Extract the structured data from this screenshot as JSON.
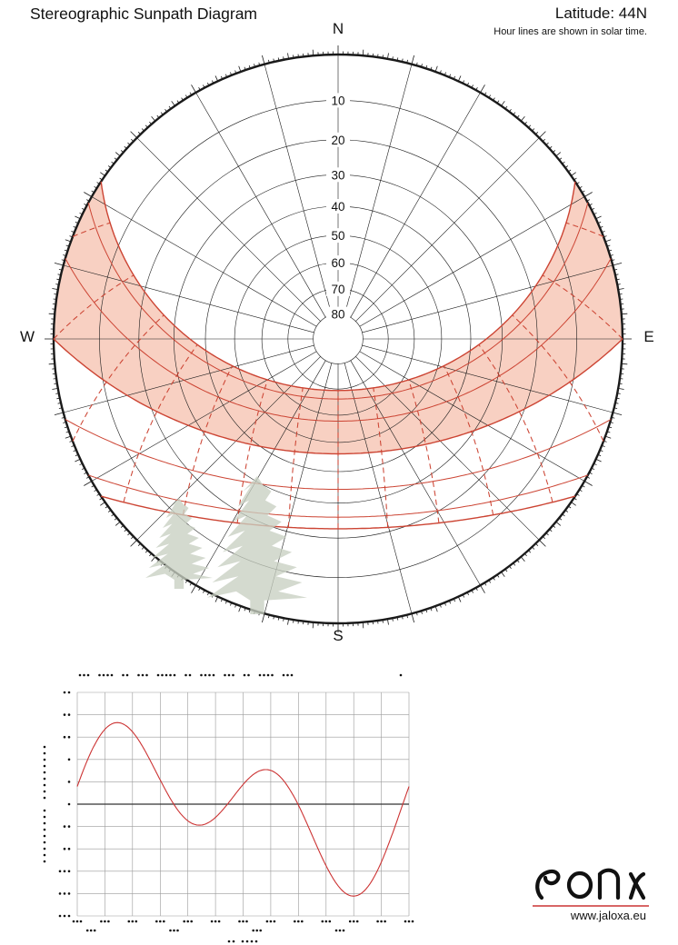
{
  "header": {
    "title": "Stereographic Sunpath Diagram",
    "latitude_label": "Latitude: 44N",
    "subtitle": "Hour lines are shown in solar time."
  },
  "diagram": {
    "compass": {
      "north": "N",
      "east": "E",
      "south": "S",
      "west": "W"
    },
    "altitude_labels": [
      "10",
      "20",
      "30",
      "40",
      "50",
      "60",
      "70",
      "80"
    ],
    "colors": {
      "grid": "#1a1a1a",
      "sun_line": "#cc4433",
      "sun_band_fill": "#ee8f6d",
      "tree": "#c8d0c2",
      "eot_grid": "#9a9a9a"
    }
  },
  "chart_data": [
    {
      "type": "sunpath-stereographic",
      "title": "Stereographic Sunpath Diagram",
      "latitude_deg": 44,
      "projection": "stereographic",
      "altitude_circles_deg": [
        0,
        10,
        20,
        30,
        40,
        50,
        60,
        70,
        80
      ],
      "azimuth_lines_step_deg": 15,
      "declination_curves_deg": [
        23.44,
        20.15,
        11.75,
        0,
        -11.75,
        -20.15,
        -23.44
      ],
      "shaded_band_between_declinations_deg": [
        0,
        23.44
      ],
      "hour_lines_solar_time": [
        5,
        6,
        7,
        8,
        9,
        10,
        11,
        12,
        13,
        14,
        15,
        16,
        17,
        18,
        19
      ],
      "hour_line_style": "dashed",
      "notes_visible": "Hour lines are shown in solar time."
    },
    {
      "type": "line",
      "name": "equation-of-time",
      "x_unit": "day-of-year",
      "x_range": [
        1,
        365
      ],
      "y_unit": "minutes (mean minus apparent)",
      "y_range": [
        -20,
        20
      ],
      "grid_columns": 12,
      "grid_rows": 10,
      "zero_axis": true,
      "line_color": "#cc3333",
      "monthly_values_min_first_of_month": [
        3.2,
        13.6,
        12.5,
        4.1,
        -2.9,
        -2.2,
        3.7,
        6.3,
        0.2,
        -10.1,
        -16.4,
        -11.2
      ]
    }
  ],
  "footer": {
    "url": "www.jaloxa.eu"
  }
}
